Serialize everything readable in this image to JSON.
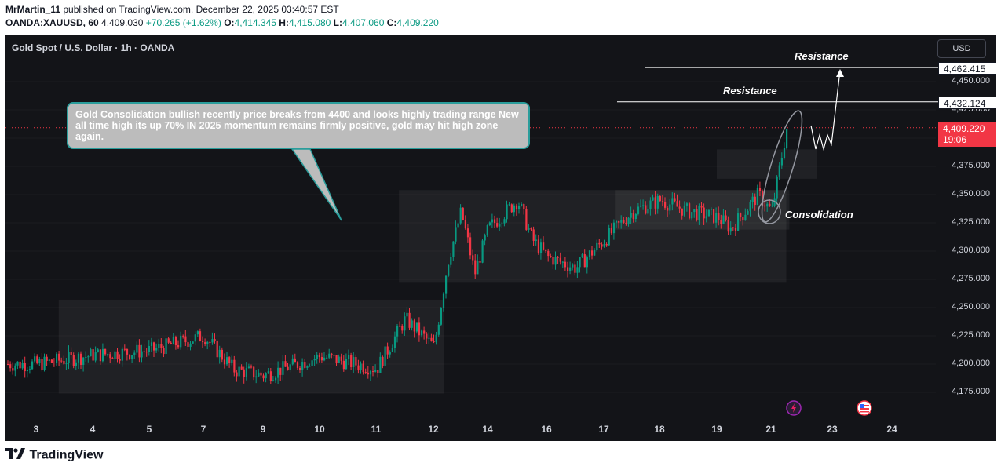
{
  "header": {
    "author": "MrMartin_11",
    "published": "published on TradingView.com, December 22, 2025 03:40:57 EST",
    "symbol": "OANDA:XAUUSD, 60",
    "last": "4,409.030",
    "change": "+70.265 (+1.62%)",
    "o_label": "O:",
    "o_value": "4,414.345",
    "h_label": "H:",
    "h_value": "4,415.080",
    "l_label": "L:",
    "l_value": "4,407.060",
    "c_label": "C:",
    "c_value": "4,409.220"
  },
  "chart": {
    "title": "Gold Spot / U.S. Dollar · 1h · OANDA",
    "currency_button": "USD",
    "callout_text": "Gold Consolidation bullish recently price breaks from 4400 and looks highly trading range New all time high its up 70% IN 2025 momentum remains firmly positive, gold may hit high zone again.",
    "annotations": {
      "resistance_top": "Resistance",
      "resistance_mid": "Resistance",
      "consolidation": "Consolidation"
    },
    "price_labels": {
      "resistance_top": "4,462.415",
      "resistance_mid": "4,432.124",
      "current": "4,409.220",
      "countdown": "19:06"
    },
    "y_ticks": [
      "4,450.000",
      "4,425.000",
      "4,375.000",
      "4,350.000",
      "4,325.000",
      "4,300.000",
      "4,275.000",
      "4,250.000",
      "4,225.000",
      "4,200.000",
      "4,175.000"
    ],
    "x_ticks": [
      "3",
      "4",
      "5",
      "7",
      "9",
      "10",
      "11",
      "12",
      "14",
      "16",
      "17",
      "18",
      "19",
      "21",
      "23",
      "24"
    ],
    "colors": {
      "up": "#089981",
      "down": "#f23645",
      "background": "#131418",
      "callout_border": "#2a9d9b"
    },
    "icons": [
      "lightning-event-icon",
      "us-flag-event-icon"
    ]
  },
  "chart_data": {
    "type": "candlestick",
    "title": "Gold Spot / U.S. Dollar · 1h · OANDA",
    "ylim": [
      4160,
      4480
    ],
    "x_labels": [
      "3",
      "4",
      "5",
      "7",
      "9",
      "10",
      "11",
      "12",
      "14",
      "16",
      "17",
      "18",
      "19",
      "21",
      "23",
      "24"
    ],
    "key_levels": [
      4462.415,
      4432.124,
      4409.22
    ],
    "path_close": [
      [
        3,
        4200
      ],
      [
        4,
        4208
      ],
      [
        5,
        4212
      ],
      [
        7,
        4225
      ],
      [
        8,
        4195
      ],
      [
        9,
        4190
      ],
      [
        10,
        4207
      ],
      [
        11,
        4196
      ],
      [
        11.5,
        4240
      ],
      [
        12,
        4215
      ],
      [
        12.5,
        4290
      ],
      [
        13,
        4335
      ],
      [
        13.5,
        4280
      ],
      [
        14,
        4320
      ],
      [
        15,
        4345
      ],
      [
        15.5,
        4310
      ],
      [
        16,
        4295
      ],
      [
        16.5,
        4285
      ],
      [
        17,
        4310
      ],
      [
        17.5,
        4335
      ],
      [
        18,
        4345
      ],
      [
        18.5,
        4335
      ],
      [
        19,
        4330
      ],
      [
        19.5,
        4320
      ],
      [
        20,
        4335
      ],
      [
        20.5,
        4350
      ],
      [
        21,
        4335
      ],
      [
        21.5,
        4410
      ]
    ],
    "forecast_path": [
      [
        21.8,
        4412
      ],
      [
        22.0,
        4395
      ],
      [
        22.3,
        4400
      ],
      [
        22.6,
        4462
      ]
    ]
  }
}
